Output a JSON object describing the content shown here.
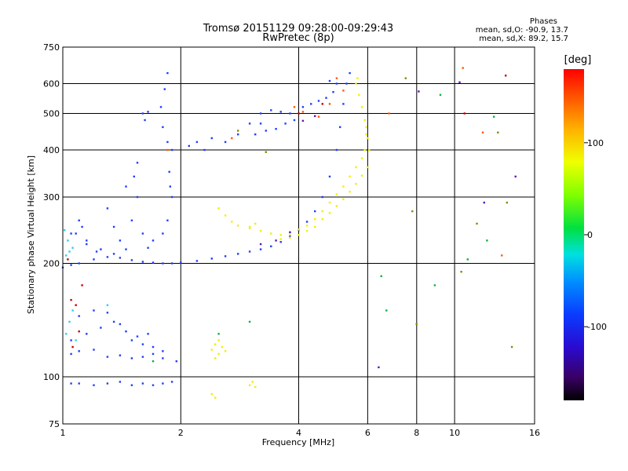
{
  "chart_data": {
    "type": "scatter",
    "title": "Tromsø 20151129 09:28:00-09:29:43",
    "subtitle": "RwPretec (8p)",
    "xlabel": "Frequency [MHz]",
    "ylabel": "Stationary phase Virtual Height [km]",
    "x_scale": "log",
    "y_scale": "log",
    "xlim": [
      1,
      16
    ],
    "ylim": [
      75,
      750
    ],
    "x_ticks": [
      "1",
      "2",
      "4",
      "6",
      "8",
      "10",
      "16"
    ],
    "y_ticks": [
      "75",
      "100",
      "200",
      "300",
      "400",
      "500",
      "600",
      "750"
    ],
    "grid": true,
    "phase_header": "Phases",
    "phase_stats": [
      "mean, sd,O: -90.9, 13.7",
      "mean, sd,X: 89.2, 15.7"
    ],
    "colorbar": {
      "unit": "[deg]",
      "range": [
        -180,
        180
      ],
      "ticks": [
        "100",
        "0",
        "-100"
      ],
      "tick_values": [
        100,
        0,
        -100
      ]
    },
    "series": [
      {
        "phase_group": "O",
        "color": "#1f3fff",
        "points": [
          [
            1.0,
            195
          ],
          [
            1.05,
            198
          ],
          [
            1.1,
            200
          ],
          [
            1.2,
            205
          ],
          [
            1.3,
            208
          ],
          [
            1.4,
            207
          ],
          [
            1.5,
            204
          ],
          [
            1.6,
            202
          ],
          [
            1.7,
            201
          ],
          [
            1.8,
            200
          ],
          [
            1.9,
            200
          ],
          [
            2.0,
            201
          ],
          [
            2.2,
            203
          ],
          [
            2.4,
            206
          ],
          [
            2.6,
            209
          ],
          [
            2.8,
            212
          ],
          [
            3.0,
            215
          ],
          [
            3.2,
            218
          ],
          [
            3.4,
            222
          ],
          [
            3.6,
            228
          ],
          [
            3.8,
            236
          ],
          [
            4.0,
            245
          ],
          [
            4.2,
            258
          ],
          [
            4.4,
            275
          ],
          [
            4.6,
            300
          ],
          [
            4.8,
            340
          ],
          [
            5.0,
            400
          ],
          [
            5.1,
            460
          ],
          [
            5.2,
            530
          ],
          [
            5.3,
            600
          ],
          [
            5.4,
            640
          ],
          [
            1.08,
            240
          ],
          [
            1.1,
            260
          ],
          [
            1.12,
            250
          ],
          [
            1.15,
            230
          ],
          [
            1.22,
            215
          ],
          [
            1.4,
            230
          ],
          [
            1.5,
            260
          ],
          [
            1.55,
            300
          ],
          [
            1.6,
            240
          ],
          [
            1.65,
            220
          ],
          [
            1.52,
            340
          ],
          [
            1.55,
            370
          ],
          [
            1.3,
            280
          ],
          [
            1.35,
            250
          ],
          [
            1.45,
            320
          ],
          [
            1.7,
            230
          ],
          [
            1.8,
            240
          ],
          [
            1.85,
            260
          ],
          [
            1.9,
            300
          ],
          [
            1.88,
            320
          ],
          [
            1.85,
            420
          ],
          [
            1.9,
            400
          ],
          [
            1.87,
            350
          ],
          [
            1.8,
            460
          ],
          [
            1.78,
            520
          ],
          [
            1.82,
            580
          ],
          [
            1.85,
            640
          ],
          [
            1.6,
            500
          ],
          [
            1.62,
            480
          ],
          [
            1.65,
            505
          ],
          [
            2.1,
            410
          ],
          [
            2.2,
            420
          ],
          [
            2.3,
            400
          ],
          [
            2.4,
            430
          ],
          [
            2.6,
            420
          ],
          [
            2.8,
            440
          ],
          [
            3.0,
            470
          ],
          [
            3.2,
            500
          ],
          [
            3.4,
            510
          ],
          [
            3.6,
            505
          ],
          [
            3.1,
            440
          ],
          [
            3.3,
            450
          ],
          [
            3.5,
            455
          ],
          [
            3.7,
            470
          ],
          [
            3.9,
            480
          ],
          [
            3.2,
            470
          ],
          [
            3.8,
            500
          ],
          [
            4.1,
            520
          ],
          [
            4.3,
            530
          ],
          [
            4.5,
            540
          ],
          [
            4.7,
            550
          ],
          [
            4.9,
            570
          ],
          [
            5.0,
            600
          ],
          [
            4.8,
            610
          ],
          [
            1.05,
            115
          ],
          [
            1.1,
            117
          ],
          [
            1.2,
            118
          ],
          [
            1.3,
            113
          ],
          [
            1.4,
            114
          ],
          [
            1.5,
            112
          ],
          [
            1.6,
            113
          ],
          [
            1.7,
            115
          ],
          [
            1.8,
            117
          ],
          [
            1.05,
            125
          ],
          [
            1.15,
            130
          ],
          [
            1.25,
            135
          ],
          [
            1.35,
            140
          ],
          [
            1.45,
            132
          ],
          [
            1.55,
            128
          ],
          [
            1.65,
            130
          ],
          [
            1.1,
            145
          ],
          [
            1.2,
            150
          ],
          [
            1.3,
            148
          ],
          [
            1.4,
            138
          ],
          [
            1.5,
            125
          ],
          [
            1.6,
            122
          ],
          [
            1.7,
            120
          ],
          [
            1.8,
            112
          ],
          [
            1.05,
            96
          ],
          [
            1.1,
            96
          ],
          [
            1.2,
            95
          ],
          [
            1.3,
            96
          ],
          [
            1.4,
            97
          ],
          [
            1.5,
            95
          ],
          [
            1.6,
            96
          ],
          [
            1.7,
            95
          ],
          [
            1.8,
            96
          ],
          [
            1.9,
            97
          ],
          [
            1.95,
            110
          ],
          [
            1.05,
            240
          ],
          [
            1.15,
            225
          ],
          [
            1.25,
            218
          ],
          [
            1.35,
            212
          ],
          [
            1.45,
            218
          ]
        ]
      },
      {
        "phase_group": "X",
        "color": "#f2ef00",
        "points": [
          [
            2.5,
            280
          ],
          [
            2.6,
            268
          ],
          [
            2.7,
            258
          ],
          [
            2.8,
            252
          ],
          [
            3.0,
            248
          ],
          [
            3.2,
            244
          ],
          [
            3.4,
            240
          ],
          [
            3.6,
            238
          ],
          [
            3.8,
            240
          ],
          [
            4.0,
            246
          ],
          [
            4.2,
            252
          ],
          [
            4.4,
            262
          ],
          [
            4.6,
            275
          ],
          [
            4.8,
            290
          ],
          [
            5.0,
            305
          ],
          [
            5.2,
            320
          ],
          [
            5.4,
            340
          ],
          [
            5.6,
            360
          ],
          [
            5.8,
            380
          ],
          [
            5.9,
            400
          ],
          [
            5.95,
            440
          ],
          [
            5.9,
            480
          ],
          [
            5.8,
            520
          ],
          [
            5.7,
            560
          ],
          [
            5.6,
            600
          ],
          [
            5.65,
            620
          ],
          [
            3.6,
            232
          ],
          [
            3.8,
            234
          ],
          [
            4.0,
            238
          ],
          [
            4.2,
            244
          ],
          [
            4.4,
            250
          ],
          [
            4.6,
            262
          ],
          [
            4.8,
            272
          ],
          [
            5.0,
            284
          ],
          [
            5.2,
            296
          ],
          [
            5.4,
            310
          ],
          [
            5.6,
            325
          ],
          [
            5.8,
            342
          ],
          [
            6.0,
            360
          ],
          [
            6.05,
            400
          ],
          [
            6.0,
            430
          ],
          [
            5.95,
            460
          ],
          [
            2.4,
            118
          ],
          [
            2.45,
            122
          ],
          [
            2.5,
            125
          ],
          [
            2.55,
            120
          ],
          [
            2.6,
            117
          ],
          [
            2.5,
            115
          ],
          [
            2.45,
            112
          ],
          [
            2.4,
            90
          ],
          [
            2.45,
            88
          ],
          [
            3.0,
            95
          ],
          [
            3.05,
            97
          ],
          [
            3.1,
            94
          ],
          [
            3.0,
            250
          ],
          [
            3.1,
            255
          ]
        ]
      },
      {
        "phase_group": "mixed",
        "color": "#30d0e0",
        "points": [
          [
            1.02,
            210
          ],
          [
            1.04,
            215
          ],
          [
            1.06,
            220
          ],
          [
            1.03,
            230
          ],
          [
            1.01,
            245
          ],
          [
            1.02,
            130
          ],
          [
            1.04,
            140
          ],
          [
            1.06,
            150
          ],
          [
            1.08,
            125
          ],
          [
            1.3,
            155
          ]
        ]
      },
      {
        "phase_group": "mixed",
        "color": "#ff5a00",
        "points": [
          [
            3.9,
            520
          ],
          [
            4.1,
            505
          ],
          [
            4.5,
            490
          ],
          [
            4.8,
            530
          ],
          [
            5.2,
            575
          ],
          [
            6.8,
            500
          ],
          [
            10.5,
            660
          ],
          [
            11.8,
            445
          ],
          [
            13.2,
            210
          ],
          [
            2.7,
            430
          ],
          [
            1.85,
            400
          ],
          [
            5.0,
            620
          ]
        ]
      },
      {
        "phase_group": "mixed",
        "color": "#c80000",
        "points": [
          [
            1.05,
            160
          ],
          [
            1.08,
            155
          ],
          [
            1.12,
            175
          ],
          [
            1.03,
            205
          ],
          [
            1.1,
            132
          ],
          [
            1.06,
            120
          ],
          [
            4.0,
            500
          ],
          [
            4.6,
            530
          ],
          [
            10.6,
            500
          ],
          [
            13.5,
            630
          ]
        ]
      },
      {
        "phase_group": "mixed",
        "color": "#5a1ab0",
        "points": [
          [
            3.2,
            225
          ],
          [
            3.5,
            230
          ],
          [
            3.8,
            242
          ],
          [
            4.1,
            478
          ],
          [
            4.4,
            492
          ],
          [
            6.4,
            106
          ],
          [
            8.1,
            572
          ],
          [
            10.3,
            605
          ],
          [
            14.3,
            340
          ],
          [
            11.9,
            290
          ]
        ]
      },
      {
        "phase_group": "mixed",
        "color": "#10b040",
        "points": [
          [
            1.7,
            110
          ],
          [
            2.5,
            130
          ],
          [
            3.0,
            140
          ],
          [
            6.5,
            185
          ],
          [
            6.7,
            150
          ],
          [
            10.8,
            205
          ],
          [
            12.6,
            490
          ],
          [
            8.9,
            175
          ],
          [
            12.1,
            230
          ],
          [
            9.2,
            560
          ]
        ]
      },
      {
        "phase_group": "mixed",
        "color": "#8a8a00",
        "points": [
          [
            2.8,
            450
          ],
          [
            3.3,
            395
          ],
          [
            7.8,
            275
          ],
          [
            8.0,
            138
          ],
          [
            10.4,
            190
          ],
          [
            12.9,
            445
          ],
          [
            13.6,
            290
          ],
          [
            14.0,
            120
          ],
          [
            7.5,
            620
          ],
          [
            11.4,
            255
          ]
        ]
      }
    ]
  }
}
